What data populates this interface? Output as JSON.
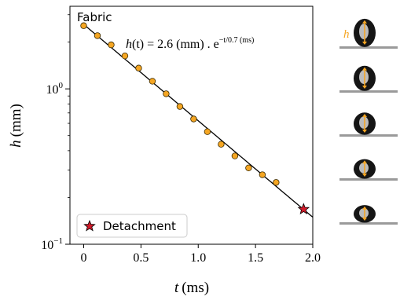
{
  "chart_data": {
    "type": "scatter",
    "panel_label": "Fabric",
    "xlabel": "t (ms)",
    "xlabel_var": "t",
    "xlabel_unit": "(ms)",
    "ylabel": "h (mm)",
    "ylabel_var": "h",
    "ylabel_unit": "(mm)",
    "xlim": [
      -0.12,
      2.0
    ],
    "ylim": [
      0.1,
      3.4
    ],
    "yscale": "log",
    "grid": false,
    "x_ticks": [
      0,
      0.5,
      1.0,
      1.5,
      2.0
    ],
    "x_tick_labels": [
      "0",
      "0.5",
      "1.0",
      "1.5",
      "2.0"
    ],
    "y_ticks": [
      {
        "value": 0.1,
        "base": "10",
        "exp": "−1"
      },
      {
        "value": 1.0,
        "base": "10",
        "exp": "0"
      }
    ],
    "series": [
      {
        "kind": "points",
        "marker": "circle",
        "color": "#f5a623",
        "edge_color": "#3a2a00",
        "x": [
          0.0,
          0.12,
          0.24,
          0.36,
          0.48,
          0.6,
          0.72,
          0.84,
          0.96,
          1.08,
          1.2,
          1.32,
          1.44,
          1.56,
          1.68
        ],
        "y": [
          2.55,
          2.2,
          1.92,
          1.63,
          1.36,
          1.12,
          0.93,
          0.77,
          0.64,
          0.53,
          0.44,
          0.37,
          0.31,
          0.28,
          0.25
        ]
      },
      {
        "kind": "fit",
        "color": "#000000",
        "amplitude": 2.6,
        "tau": 0.7,
        "x_range": [
          0.0,
          2.0
        ]
      },
      {
        "name": "Detachment",
        "kind": "point",
        "marker": "star",
        "color": "#d11a2a",
        "x": [
          1.92
        ],
        "y": [
          0.168
        ]
      }
    ],
    "annotation": {
      "prefix": "h",
      "paren": "(t) = 2.6 (mm) . e",
      "exponent": "−t/0.7 (ms)"
    },
    "legend": {
      "placement": "lower-left",
      "label": "Detachment"
    },
    "side_images": {
      "label": "h",
      "label_color": "#f5a623",
      "count": 5,
      "droplet_heights": [
        1.0,
        0.8,
        0.62,
        0.45,
        0.32
      ]
    }
  }
}
